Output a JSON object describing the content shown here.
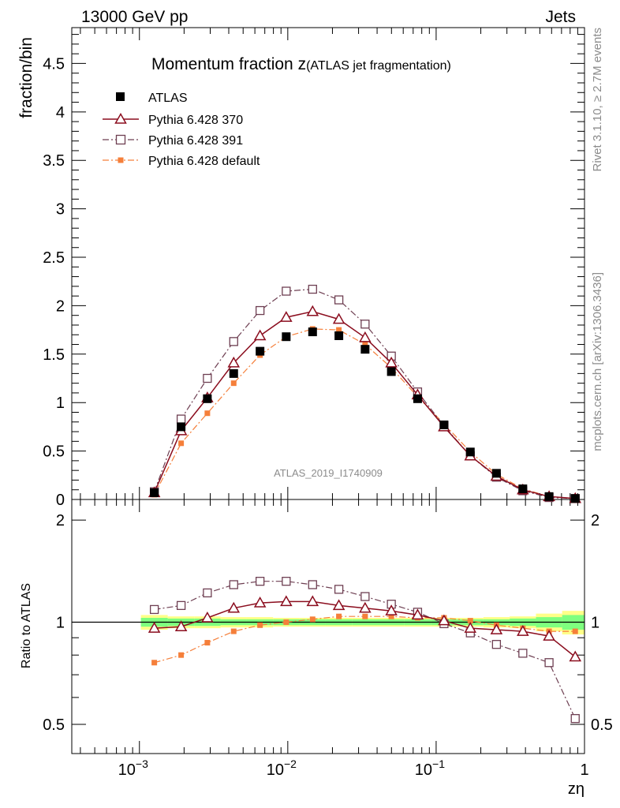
{
  "header": {
    "left": "13000 GeV pp",
    "right": "Jets"
  },
  "title": {
    "main": "Momentum fraction z",
    "sub": "(ATLAS jet fragmentation)"
  },
  "ylabel_main": "fraction/bin",
  "ylabel_ratio": "Ratio to ATLAS",
  "xlabel": "zη",
  "side_text": {
    "rivet": "Rivet 3.1.10, ≥ 2.7M events",
    "mcplots": "mcplots.cern.ch [arXiv:1306.3436]"
  },
  "watermark": "ATLAS_2019_I1740909",
  "colors": {
    "atlas": "#000000",
    "p370": "#8b0d1e",
    "p391": "#6e3f52",
    "pdef": "#f57f3a",
    "band_outer": "#ffff88",
    "band_inner": "#7fff7f"
  },
  "chart_data": {
    "type": "scatter",
    "x": [
      0.00126,
      0.00191,
      0.00287,
      0.00432,
      0.0065,
      0.00976,
      0.0147,
      0.0221,
      0.0332,
      0.0499,
      0.075,
      0.113,
      0.17,
      0.255,
      0.384,
      0.577,
      0.866
    ],
    "xscale": "log",
    "xlim": [
      0.00035,
      1
    ],
    "xticks": [
      {
        "value": 0.001,
        "label": "10",
        "exp": "−3"
      },
      {
        "value": 0.01,
        "label": "10",
        "exp": "−2"
      },
      {
        "value": 0.1,
        "label": "10",
        "exp": "−1"
      },
      {
        "value": 1,
        "label": "1",
        "exp": ""
      }
    ],
    "main": {
      "ylim": [
        0,
        4.87
      ],
      "yticks": [
        "0",
        "0.5",
        "1",
        "1.5",
        "2",
        "2.5",
        "3",
        "3.5",
        "4",
        "4.5"
      ],
      "legend_placement": "top-left",
      "series": [
        {
          "name": "ATLAS",
          "key": "atlas",
          "marker": "filled-square",
          "values": [
            0.07,
            0.75,
            1.04,
            1.3,
            1.53,
            1.68,
            1.73,
            1.69,
            1.55,
            1.32,
            1.04,
            0.77,
            0.49,
            0.27,
            0.11,
            0.03,
            0.01
          ]
        },
        {
          "name": "Pythia 6.428 370",
          "key": "p370",
          "marker": "open-triangle",
          "line": "solid",
          "values": [
            0.07,
            0.71,
            1.05,
            1.41,
            1.69,
            1.88,
            1.94,
            1.86,
            1.67,
            1.41,
            1.08,
            0.75,
            0.45,
            0.24,
            0.1,
            0.03,
            0.01
          ]
        },
        {
          "name": "Pythia 6.428 391",
          "key": "p391",
          "marker": "open-square",
          "line": "dash-dot",
          "values": [
            0.08,
            0.83,
            1.25,
            1.63,
            1.95,
            2.15,
            2.17,
            2.06,
            1.81,
            1.48,
            1.11,
            0.76,
            0.45,
            0.23,
            0.09,
            0.02,
            0.01
          ]
        },
        {
          "name": "Pythia 6.428 default",
          "key": "pdef",
          "marker": "small-filled-square",
          "line": "dash-dot",
          "values": [
            0.05,
            0.58,
            0.89,
            1.2,
            1.49,
            1.68,
            1.76,
            1.75,
            1.6,
            1.36,
            1.06,
            0.78,
            0.49,
            0.26,
            0.11,
            0.03,
            0.01
          ]
        }
      ]
    },
    "ratio": {
      "ylim": [
        0.41,
        2.3
      ],
      "yscale": "log",
      "yticks": [
        "0.5",
        "1",
        "2"
      ],
      "reference": 1,
      "band_outer_halfwidth": [
        0.05,
        0.04,
        0.04,
        0.035,
        0.035,
        0.03,
        0.03,
        0.03,
        0.03,
        0.03,
        0.03,
        0.03,
        0.03,
        0.035,
        0.04,
        0.06,
        0.08
      ],
      "band_inner_halfwidth": [
        0.03,
        0.025,
        0.025,
        0.02,
        0.02,
        0.02,
        0.02,
        0.02,
        0.02,
        0.02,
        0.02,
        0.02,
        0.02,
        0.02,
        0.025,
        0.035,
        0.05
      ],
      "series": [
        {
          "name": "Pythia 6.428 370",
          "key": "p370",
          "values": [
            0.96,
            0.97,
            1.03,
            1.1,
            1.14,
            1.15,
            1.15,
            1.12,
            1.1,
            1.08,
            1.05,
            1.01,
            0.96,
            0.95,
            0.94,
            0.91,
            0.79
          ]
        },
        {
          "name": "Pythia 6.428 391",
          "key": "p391",
          "values": [
            1.09,
            1.12,
            1.22,
            1.29,
            1.32,
            1.32,
            1.29,
            1.25,
            1.19,
            1.13,
            1.07,
            0.99,
            0.93,
            0.86,
            0.81,
            0.76,
            0.52
          ]
        },
        {
          "name": "Pythia 6.428 default",
          "key": "pdef",
          "values": [
            0.76,
            0.8,
            0.87,
            0.94,
            0.98,
            1.0,
            1.02,
            1.04,
            1.04,
            1.04,
            1.03,
            1.03,
            1.01,
            0.98,
            0.96,
            0.94,
            0.94
          ]
        }
      ]
    }
  }
}
